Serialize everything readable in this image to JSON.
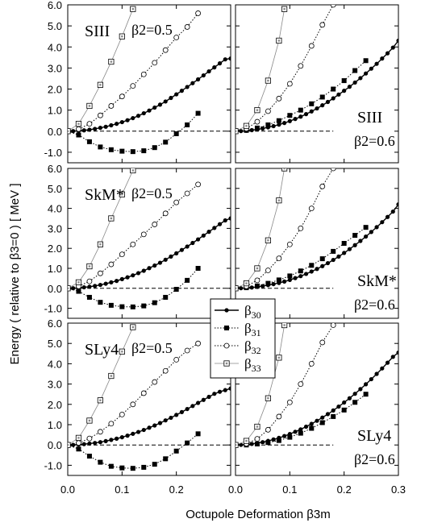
{
  "chart_data": {
    "type": "line",
    "ylabel": "Energy ( relative to β3=0 ) [ MeV ]",
    "xlabel": "Octupole Deformation β3m",
    "xlim": [
      0.0,
      0.3
    ],
    "ylim": [
      -1.5,
      6.0
    ],
    "x_ticks": [
      "0.0",
      "0.1",
      "0.2",
      "0.0",
      "0.1",
      "0.2",
      "0.3"
    ],
    "y_ticks": [
      "6.0",
      "5.0",
      "4.0",
      "3.0",
      "2.0",
      "1.0",
      "0.0",
      "-1.0"
    ],
    "legend": {
      "placement": "center",
      "entries": [
        {
          "label": "β30",
          "main": "β",
          "sub": "30",
          "marker": "filled-circle",
          "line": "solid"
        },
        {
          "label": "β31",
          "main": "β",
          "sub": "31",
          "marker": "filled-square",
          "line": "dotted"
        },
        {
          "label": "β32",
          "main": "β",
          "sub": "32",
          "marker": "open-circle",
          "line": "dotted"
        },
        {
          "label": "β33",
          "main": "β",
          "sub": "33",
          "marker": "dotted-square",
          "line": "thin"
        }
      ]
    },
    "panels": [
      {
        "row": 0,
        "col": 0,
        "force": "SIII",
        "beta2_text": "β2=0.5",
        "series": [
          {
            "key": "b30",
            "x": [
              0.0,
              0.01,
              0.02,
              0.03,
              0.04,
              0.05,
              0.06,
              0.07,
              0.08,
              0.09,
              0.1,
              0.11,
              0.12,
              0.13,
              0.14,
              0.15,
              0.16,
              0.17,
              0.18,
              0.19,
              0.2,
              0.21,
              0.22,
              0.23,
              0.24,
              0.25,
              0.26,
              0.27,
              0.28,
              0.29,
              0.3
            ],
            "y": [
              0.0,
              0.005,
              0.02,
              0.04,
              0.07,
              0.11,
              0.16,
              0.21,
              0.28,
              0.35,
              0.43,
              0.52,
              0.62,
              0.73,
              0.85,
              0.98,
              1.12,
              1.26,
              1.41,
              1.58,
              1.75,
              1.92,
              2.1,
              2.28,
              2.46,
              2.65,
              2.84,
              3.03,
              3.22,
              3.41,
              3.45
            ]
          },
          {
            "key": "b31",
            "x": [
              0.0,
              0.02,
              0.04,
              0.06,
              0.08,
              0.1,
              0.12,
              0.14,
              0.16,
              0.18,
              0.2,
              0.22,
              0.24
            ],
            "y": [
              0.0,
              -0.18,
              -0.5,
              -0.75,
              -0.88,
              -0.95,
              -0.97,
              -0.93,
              -0.78,
              -0.52,
              -0.12,
              0.3,
              0.85
            ]
          },
          {
            "key": "b32",
            "x": [
              0.0,
              0.02,
              0.04,
              0.06,
              0.08,
              0.1,
              0.12,
              0.14,
              0.16,
              0.18,
              0.2,
              0.22,
              0.24
            ],
            "y": [
              0.0,
              0.1,
              0.35,
              0.75,
              1.2,
              1.65,
              2.15,
              2.7,
              3.25,
              3.85,
              4.45,
              4.95,
              5.6
            ]
          },
          {
            "key": "b33",
            "x": [
              0.0,
              0.02,
              0.04,
              0.06,
              0.08,
              0.1,
              0.12
            ],
            "y": [
              0.0,
              0.35,
              1.2,
              2.2,
              3.3,
              4.5,
              5.8
            ]
          }
        ]
      },
      {
        "row": 0,
        "col": 1,
        "force": "SIII",
        "beta2_text": "β2=0.6",
        "series": [
          {
            "key": "b30",
            "x": [
              0.0,
              0.01,
              0.02,
              0.03,
              0.04,
              0.05,
              0.06,
              0.07,
              0.08,
              0.09,
              0.1,
              0.11,
              0.12,
              0.13,
              0.14,
              0.15,
              0.16,
              0.17,
              0.18,
              0.19,
              0.2,
              0.21,
              0.22,
              0.23,
              0.24,
              0.25,
              0.26,
              0.27,
              0.28,
              0.29,
              0.3
            ],
            "y": [
              0.0,
              0.005,
              0.02,
              0.05,
              0.08,
              0.13,
              0.18,
              0.24,
              0.31,
              0.39,
              0.48,
              0.58,
              0.69,
              0.81,
              0.94,
              1.08,
              1.23,
              1.39,
              1.56,
              1.74,
              1.92,
              2.11,
              2.31,
              2.52,
              2.74,
              2.97,
              3.2,
              3.45,
              3.7,
              3.97,
              4.3
            ]
          },
          {
            "key": "b31",
            "x": [
              0.0,
              0.02,
              0.04,
              0.06,
              0.08,
              0.1,
              0.12,
              0.14,
              0.16,
              0.18,
              0.2,
              0.22,
              0.24
            ],
            "y": [
              0.0,
              0.04,
              0.15,
              0.3,
              0.5,
              0.75,
              1.0,
              1.3,
              1.62,
              2.0,
              2.4,
              2.88,
              3.35
            ]
          },
          {
            "key": "b32",
            "x": [
              0.0,
              0.02,
              0.04,
              0.06,
              0.08,
              0.1,
              0.12,
              0.14,
              0.16,
              0.18
            ],
            "y": [
              0.0,
              0.12,
              0.45,
              0.95,
              1.55,
              2.25,
              3.1,
              4.05,
              5.05,
              6.0
            ]
          },
          {
            "key": "b33",
            "x": [
              0.0,
              0.02,
              0.04,
              0.06,
              0.08,
              0.09
            ],
            "y": [
              0.0,
              0.25,
              1.0,
              2.4,
              4.3,
              5.8
            ]
          }
        ]
      },
      {
        "row": 1,
        "col": 0,
        "force": "SkM*",
        "beta2_text": "β2=0.5",
        "series": [
          {
            "key": "b30",
            "x": [
              0.0,
              0.01,
              0.02,
              0.03,
              0.04,
              0.05,
              0.06,
              0.07,
              0.08,
              0.09,
              0.1,
              0.11,
              0.12,
              0.13,
              0.14,
              0.15,
              0.16,
              0.17,
              0.18,
              0.19,
              0.2,
              0.21,
              0.22,
              0.23,
              0.24,
              0.25,
              0.26,
              0.27,
              0.28,
              0.29,
              0.3
            ],
            "y": [
              0.0,
              0.005,
              0.02,
              0.05,
              0.08,
              0.12,
              0.17,
              0.23,
              0.3,
              0.37,
              0.46,
              0.55,
              0.65,
              0.76,
              0.88,
              1.01,
              1.14,
              1.28,
              1.43,
              1.59,
              1.75,
              1.92,
              2.09,
              2.27,
              2.45,
              2.64,
              2.83,
              3.02,
              3.21,
              3.4,
              3.5
            ]
          },
          {
            "key": "b31",
            "x": [
              0.0,
              0.02,
              0.04,
              0.06,
              0.08,
              0.1,
              0.12,
              0.14,
              0.16,
              0.18,
              0.2,
              0.22,
              0.24
            ],
            "y": [
              0.0,
              -0.15,
              -0.45,
              -0.7,
              -0.85,
              -0.92,
              -0.93,
              -0.88,
              -0.72,
              -0.45,
              -0.05,
              0.4,
              1.0
            ]
          },
          {
            "key": "b32",
            "x": [
              0.0,
              0.02,
              0.04,
              0.06,
              0.08,
              0.1,
              0.12,
              0.14,
              0.16,
              0.18,
              0.2,
              0.22,
              0.24
            ],
            "y": [
              0.0,
              0.1,
              0.35,
              0.75,
              1.2,
              1.7,
              2.2,
              2.7,
              3.2,
              3.75,
              4.3,
              4.75,
              5.2
            ]
          },
          {
            "key": "b33",
            "x": [
              0.0,
              0.02,
              0.04,
              0.06,
              0.08,
              0.1,
              0.12
            ],
            "y": [
              0.0,
              0.3,
              1.1,
              2.2,
              3.5,
              4.7,
              5.9
            ]
          }
        ]
      },
      {
        "row": 1,
        "col": 1,
        "force": "SkM*",
        "beta2_text": "β2=0.6",
        "series": [
          {
            "key": "b30",
            "x": [
              0.0,
              0.01,
              0.02,
              0.03,
              0.04,
              0.05,
              0.06,
              0.07,
              0.08,
              0.09,
              0.1,
              0.11,
              0.12,
              0.13,
              0.14,
              0.15,
              0.16,
              0.17,
              0.18,
              0.19,
              0.2,
              0.21,
              0.22,
              0.23,
              0.24,
              0.25,
              0.26,
              0.27,
              0.28,
              0.29,
              0.3
            ],
            "y": [
              0.0,
              0.005,
              0.02,
              0.04,
              0.07,
              0.11,
              0.16,
              0.21,
              0.27,
              0.34,
              0.42,
              0.51,
              0.61,
              0.72,
              0.84,
              0.97,
              1.11,
              1.26,
              1.42,
              1.59,
              1.77,
              1.96,
              2.16,
              2.37,
              2.59,
              2.82,
              3.06,
              3.31,
              3.57,
              3.84,
              4.2
            ]
          },
          {
            "key": "b31",
            "x": [
              0.0,
              0.02,
              0.04,
              0.06,
              0.08,
              0.1,
              0.12,
              0.14,
              0.16,
              0.18,
              0.2,
              0.22,
              0.24
            ],
            "y": [
              0.0,
              0.03,
              0.12,
              0.25,
              0.42,
              0.62,
              0.87,
              1.15,
              1.48,
              1.85,
              2.25,
              2.65,
              3.05
            ]
          },
          {
            "key": "b32",
            "x": [
              0.0,
              0.02,
              0.04,
              0.06,
              0.08,
              0.1,
              0.12,
              0.14,
              0.16,
              0.18
            ],
            "y": [
              0.0,
              0.1,
              0.4,
              0.9,
              1.5,
              2.2,
              3.0,
              4.0,
              5.1,
              6.0
            ]
          },
          {
            "key": "b33",
            "x": [
              0.0,
              0.02,
              0.04,
              0.06,
              0.08,
              0.09
            ],
            "y": [
              0.0,
              0.25,
              1.0,
              2.4,
              4.4,
              6.0
            ]
          }
        ]
      },
      {
        "row": 2,
        "col": 0,
        "force": "SLy4",
        "beta2_text": "β2=0.5",
        "series": [
          {
            "key": "b30",
            "x": [
              0.0,
              0.01,
              0.02,
              0.03,
              0.04,
              0.05,
              0.06,
              0.07,
              0.08,
              0.09,
              0.1,
              0.11,
              0.12,
              0.13,
              0.14,
              0.15,
              0.16,
              0.17,
              0.18,
              0.19,
              0.2,
              0.21,
              0.22,
              0.23,
              0.24,
              0.25,
              0.26,
              0.27,
              0.28,
              0.29,
              0.3
            ],
            "y": [
              0.0,
              0.005,
              0.02,
              0.04,
              0.07,
              0.1,
              0.14,
              0.19,
              0.25,
              0.31,
              0.38,
              0.46,
              0.55,
              0.64,
              0.74,
              0.85,
              0.96,
              1.08,
              1.21,
              1.34,
              1.48,
              1.62,
              1.77,
              1.92,
              2.07,
              2.22,
              2.37,
              2.52,
              2.62,
              2.7,
              2.78
            ]
          },
          {
            "key": "b31",
            "x": [
              0.0,
              0.02,
              0.04,
              0.06,
              0.08,
              0.1,
              0.12,
              0.14,
              0.16,
              0.18,
              0.2,
              0.22,
              0.24
            ],
            "y": [
              0.0,
              -0.2,
              -0.55,
              -0.85,
              -1.05,
              -1.13,
              -1.15,
              -1.1,
              -0.95,
              -0.68,
              -0.3,
              0.1,
              0.55
            ]
          },
          {
            "key": "b32",
            "x": [
              0.0,
              0.02,
              0.04,
              0.06,
              0.08,
              0.1,
              0.12,
              0.14,
              0.16,
              0.18,
              0.2,
              0.22,
              0.24
            ],
            "y": [
              0.0,
              0.1,
              0.32,
              0.65,
              1.05,
              1.5,
              2.0,
              2.55,
              3.1,
              3.65,
              4.2,
              4.65,
              5.0
            ]
          },
          {
            "key": "b33",
            "x": [
              0.0,
              0.02,
              0.04,
              0.06,
              0.08,
              0.1,
              0.12
            ],
            "y": [
              0.0,
              0.35,
              1.2,
              2.2,
              3.4,
              4.6,
              5.8
            ]
          }
        ]
      },
      {
        "row": 2,
        "col": 1,
        "force": "SLy4",
        "beta2_text": "β2=0.6",
        "series": [
          {
            "key": "b30",
            "x": [
              0.0,
              0.01,
              0.02,
              0.03,
              0.04,
              0.05,
              0.06,
              0.07,
              0.08,
              0.09,
              0.1,
              0.11,
              0.12,
              0.13,
              0.14,
              0.15,
              0.16,
              0.17,
              0.18,
              0.19,
              0.2,
              0.21,
              0.22,
              0.23,
              0.24,
              0.25,
              0.26,
              0.27,
              0.28,
              0.29,
              0.3
            ],
            "y": [
              0.0,
              0.005,
              0.02,
              0.05,
              0.09,
              0.14,
              0.2,
              0.27,
              0.35,
              0.44,
              0.54,
              0.65,
              0.77,
              0.9,
              1.04,
              1.19,
              1.35,
              1.52,
              1.7,
              1.89,
              2.09,
              2.3,
              2.52,
              2.75,
              2.99,
              3.24,
              3.5,
              3.77,
              4.05,
              4.34,
              4.55
            ]
          },
          {
            "key": "b31",
            "x": [
              0.0,
              0.02,
              0.04,
              0.06,
              0.08,
              0.1,
              0.12,
              0.14,
              0.16,
              0.18,
              0.2,
              0.22,
              0.24
            ],
            "y": [
              0.0,
              0.0,
              0.05,
              0.12,
              0.22,
              0.38,
              0.58,
              0.82,
              1.1,
              1.4,
              1.72,
              2.1,
              2.5
            ]
          },
          {
            "key": "b32",
            "x": [
              0.0,
              0.02,
              0.04,
              0.06,
              0.08,
              0.1,
              0.12,
              0.14,
              0.16,
              0.18
            ],
            "y": [
              0.0,
              0.06,
              0.3,
              0.75,
              1.4,
              2.1,
              3.0,
              4.0,
              5.05,
              5.9
            ]
          },
          {
            "key": "b33",
            "x": [
              0.0,
              0.02,
              0.04,
              0.06,
              0.08,
              0.09
            ],
            "y": [
              0.0,
              0.2,
              0.9,
              2.3,
              4.3,
              5.9
            ]
          }
        ]
      }
    ]
  }
}
